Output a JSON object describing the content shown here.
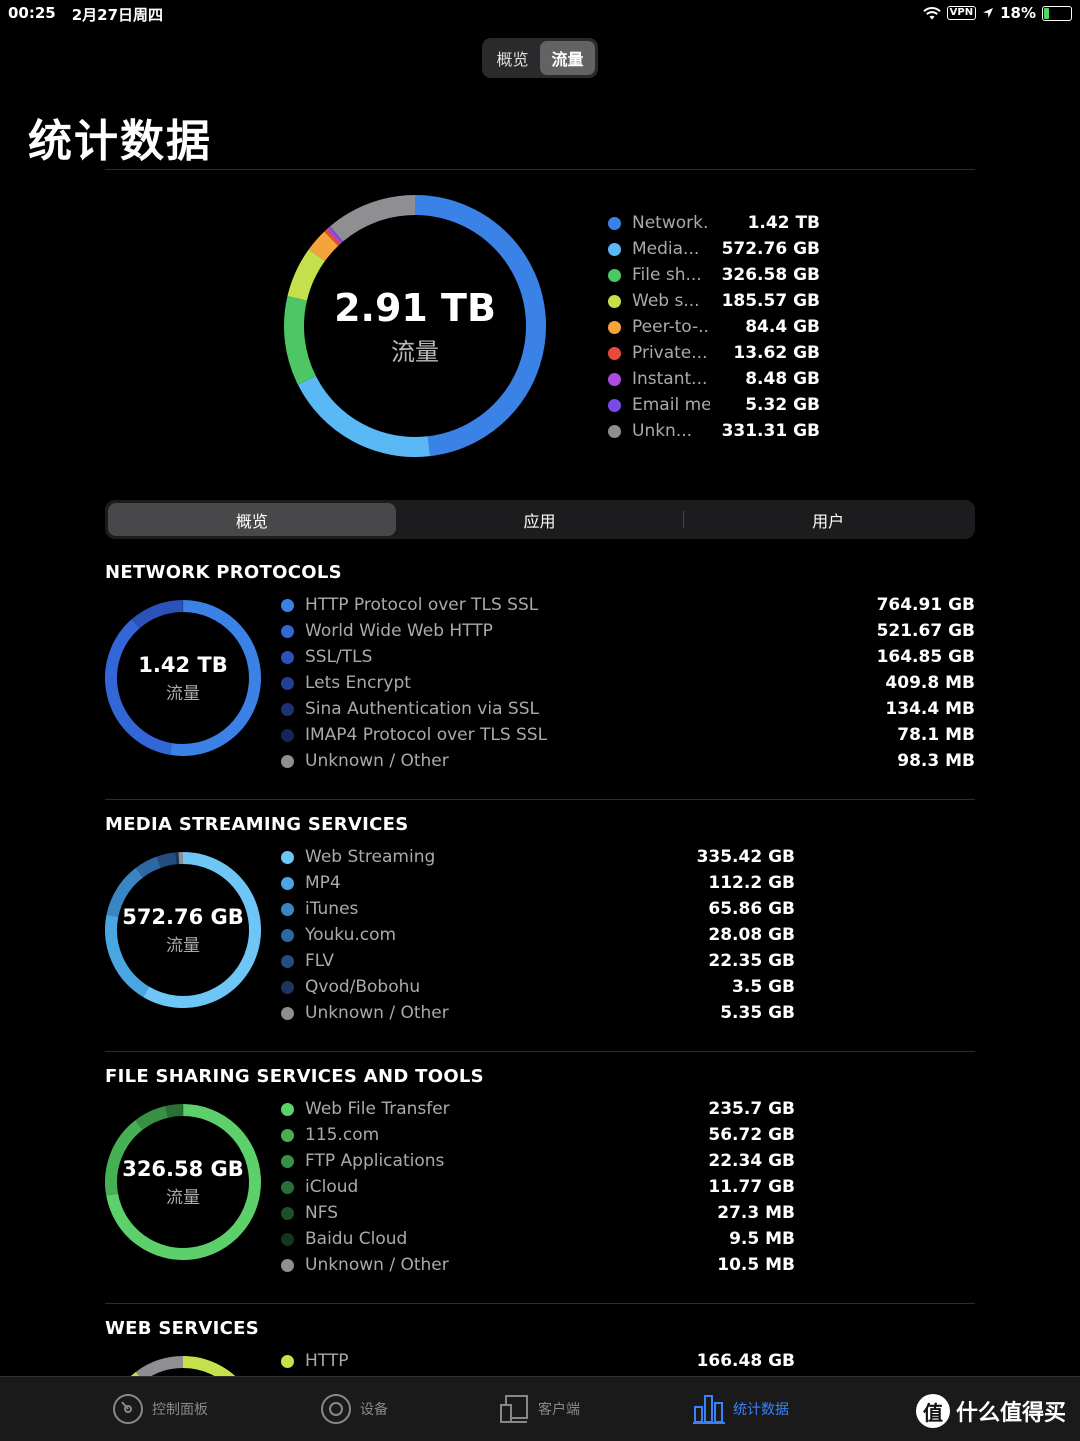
{
  "status": {
    "time": "00:25",
    "date": "2月27日周四",
    "vpn": "VPN",
    "battery": "18%",
    "battery_level": 0.18
  },
  "top_tabs": [
    {
      "label": "概览"
    },
    {
      "label": "流量"
    }
  ],
  "top_tabs_active": 1,
  "page_title": "统计数据",
  "summary": {
    "value": "2.91 TB",
    "unit": "流量",
    "items": [
      {
        "name": "Network...",
        "value": "1.42 TB",
        "color": "#3b82e6"
      },
      {
        "name": "Media...",
        "value": "572.76 GB",
        "color": "#5ab8f5"
      },
      {
        "name": "File sh...",
        "value": "326.58 GB",
        "color": "#4cc764"
      },
      {
        "name": "Web s...",
        "value": "185.57 GB",
        "color": "#c4e04a"
      },
      {
        "name": "Peer-to-...",
        "value": "84.4 GB",
        "color": "#f5a33b"
      },
      {
        "name": "Private...",
        "value": "13.62 GB",
        "color": "#e84a3b"
      },
      {
        "name": "Instant...",
        "value": "8.48 GB",
        "color": "#b04ae0"
      },
      {
        "name": "Email me...",
        "value": "5.32 GB",
        "color": "#7a4ae8"
      },
      {
        "name": "Unkn...",
        "value": "331.31 GB",
        "color": "#8e8e93"
      }
    ],
    "slices": [
      1420,
      572.76,
      326.58,
      185.57,
      84.4,
      13.62,
      8.48,
      5.32,
      331.31
    ]
  },
  "mid_tabs": [
    {
      "label": "概览"
    },
    {
      "label": "应用"
    },
    {
      "label": "用户"
    }
  ],
  "sections": [
    {
      "title": "NETWORK PROTOCOLS",
      "value": "1.42 TB",
      "unit": "流量",
      "items": [
        {
          "name": "HTTP Protocol over TLS SSL",
          "value": "764.91 GB",
          "color": "#3b82e6"
        },
        {
          "name": "World Wide Web HTTP",
          "value": "521.67 GB",
          "color": "#3366d6"
        },
        {
          "name": "SSL/TLS",
          "value": "164.85 GB",
          "color": "#2a52b8"
        },
        {
          "name": "Lets Encrypt",
          "value": "409.8 MB",
          "color": "#223f94"
        },
        {
          "name": "Sina Authentication via SSL",
          "value": "134.4 MB",
          "color": "#1b3274"
        },
        {
          "name": "IMAP4 Protocol over TLS SSL",
          "value": "78.1 MB",
          "color": "#152656"
        },
        {
          "name": "Unknown / Other",
          "value": "98.3 MB",
          "color": "#8e8e93"
        }
      ],
      "slices": [
        764.91,
        521.67,
        164.85,
        0.41,
        0.13,
        0.08,
        0.1
      ]
    },
    {
      "title": "MEDIA STREAMING SERVICES",
      "value": "572.76 GB",
      "unit": "流量",
      "items": [
        {
          "name": "Web Streaming",
          "value": "335.42 GB",
          "color": "#6ec6f7"
        },
        {
          "name": "MP4",
          "value": "112.2 GB",
          "color": "#4aa6e0"
        },
        {
          "name": "iTunes",
          "value": "65.86 GB",
          "color": "#3a86c4"
        },
        {
          "name": "Youku.com",
          "value": "28.08 GB",
          "color": "#2d68a2"
        },
        {
          "name": "FLV",
          "value": "22.35 GB",
          "color": "#234e80"
        },
        {
          "name": "Qvod/Bobohu",
          "value": "3.5 GB",
          "color": "#1a3660"
        },
        {
          "name": "Unknown / Other",
          "value": "5.35 GB",
          "color": "#8e8e93"
        }
      ],
      "slices": [
        335.42,
        112.2,
        65.86,
        28.08,
        22.35,
        3.5,
        5.35
      ]
    },
    {
      "title": "FILE SHARING SERVICES AND TOOLS",
      "value": "326.58 GB",
      "unit": "流量",
      "items": [
        {
          "name": "Web File Transfer",
          "value": "235.7 GB",
          "color": "#5dd06b"
        },
        {
          "name": "115.com",
          "value": "56.72 GB",
          "color": "#46b055"
        },
        {
          "name": "FTP Applications",
          "value": "22.34 GB",
          "color": "#379043"
        },
        {
          "name": "iCloud",
          "value": "11.77 GB",
          "color": "#2a7034"
        },
        {
          "name": "NFS",
          "value": "27.3 MB",
          "color": "#1e5026"
        },
        {
          "name": "Baidu Cloud",
          "value": "9.5 MB",
          "color": "#143619"
        },
        {
          "name": "Unknown / Other",
          "value": "10.5 MB",
          "color": "#8e8e93"
        }
      ],
      "slices": [
        235.7,
        56.72,
        22.34,
        11.77,
        0.03,
        0.01,
        0.01
      ]
    },
    {
      "title": "WEB SERVICES",
      "value": "",
      "unit": "",
      "items": [
        {
          "name": "HTTP",
          "value": "166.48 GB",
          "color": "#c4e04a"
        }
      ],
      "slices": [
        166.48,
        19.09
      ]
    }
  ],
  "tabbar": [
    {
      "label": "控制面板",
      "icon": "dashboard-icon"
    },
    {
      "label": "设备",
      "icon": "devices-icon"
    },
    {
      "label": "客户端",
      "icon": "clients-icon"
    },
    {
      "label": "统计数据",
      "icon": "statistics-icon"
    }
  ],
  "tabbar_active": 3,
  "watermark": {
    "glyph": "值",
    "text": "什么值得买"
  }
}
